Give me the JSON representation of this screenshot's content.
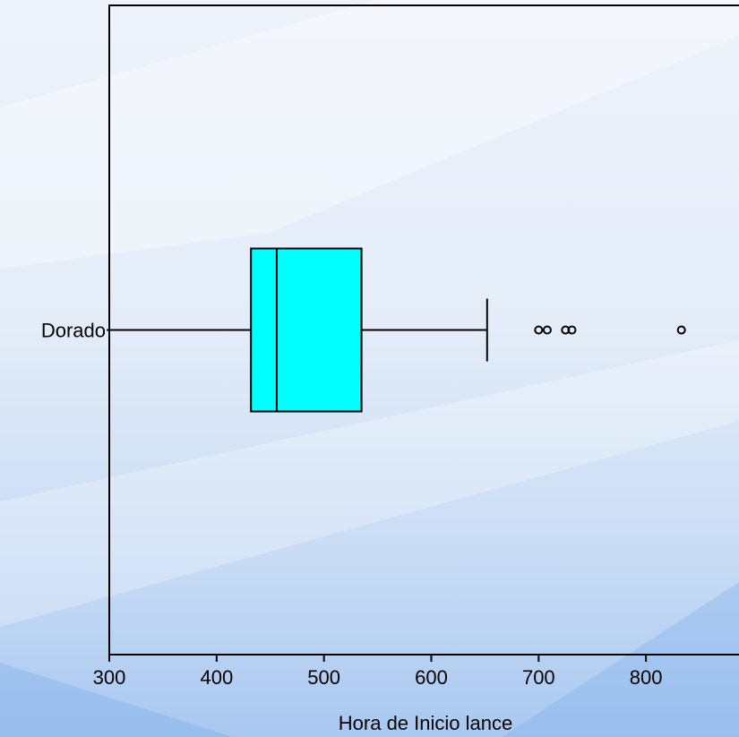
{
  "chart_data": {
    "type": "boxplot",
    "orientation": "horizontal",
    "xlabel": "Hora de Inicio lance",
    "xlim": [
      300,
      890
    ],
    "xticks": [
      300,
      400,
      500,
      600,
      700,
      800
    ],
    "xtick_labels": [
      "300",
      "400",
      "500",
      "600",
      "700",
      "800"
    ],
    "categories": [
      "Dorado"
    ],
    "boxes": [
      {
        "category": "Dorado",
        "whisker_low": 300,
        "q1": 432,
        "median": 456,
        "q3": 535,
        "whisker_high": 652,
        "outliers": [
          700,
          708,
          725,
          731,
          833
        ]
      }
    ],
    "colors": {
      "box_fill": "#00ffff",
      "stroke": "#000000"
    },
    "grid": false
  }
}
